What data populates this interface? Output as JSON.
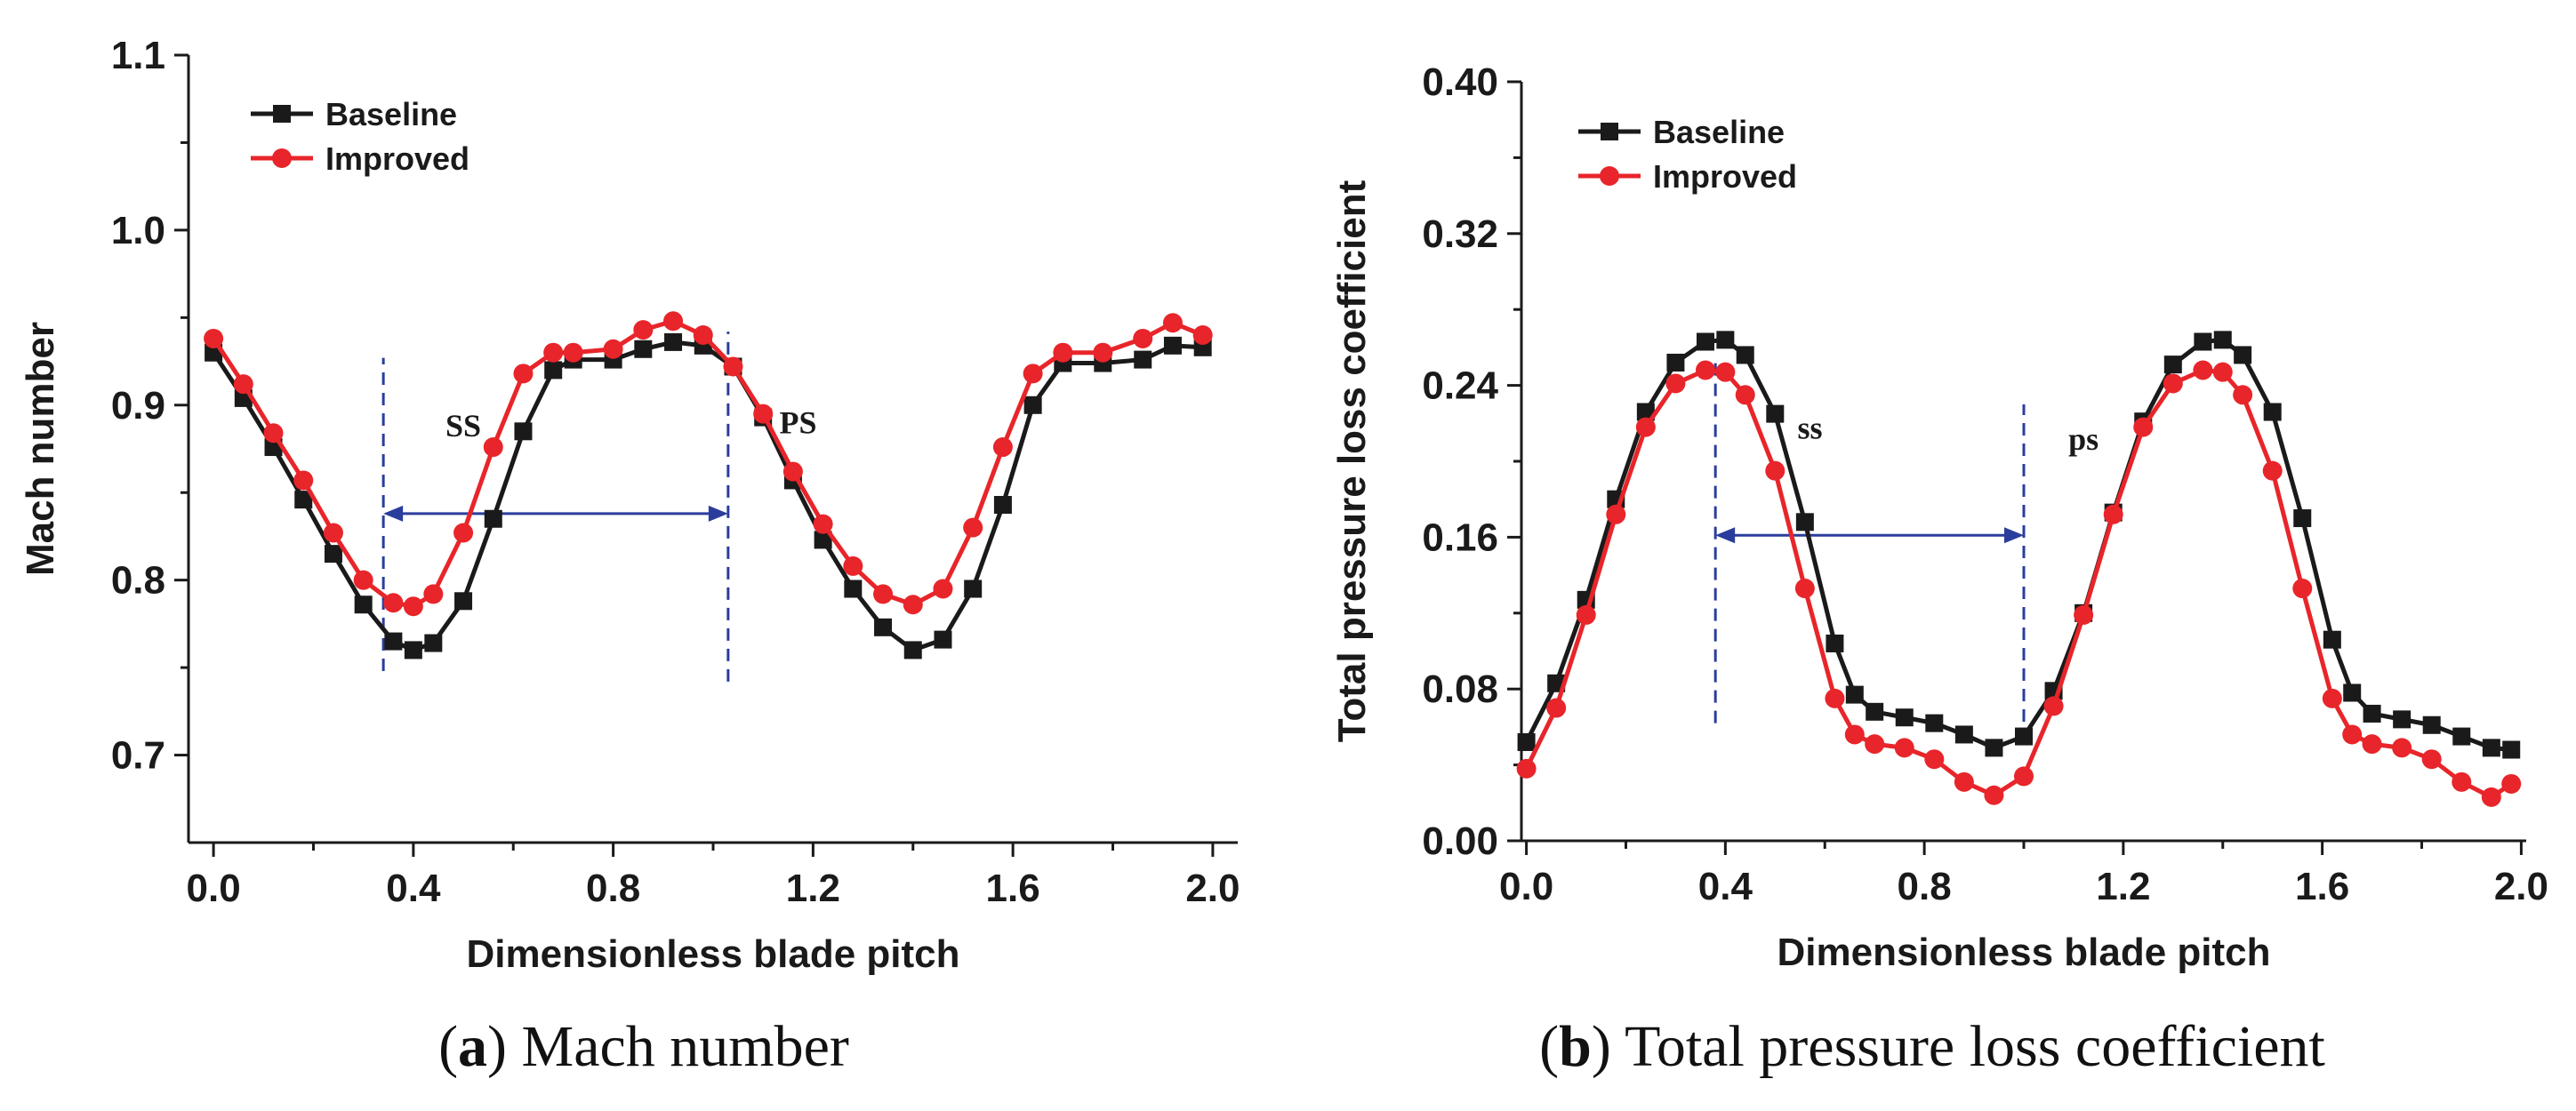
{
  "chart_data": [
    {
      "type": "line",
      "panel_letter": "a",
      "caption": "Mach number",
      "xlabel": "Dimensionless blade pitch",
      "ylabel": "Mach number",
      "xlim": [
        -0.05,
        2.05
      ],
      "ylim": [
        0.65,
        1.1
      ],
      "xticks": [
        "0.0",
        "0.4",
        "0.8",
        "1.2",
        "1.6",
        "2.0"
      ],
      "xtick_values": [
        0,
        0.4,
        0.8,
        1.2,
        1.6,
        2.0
      ],
      "yticks": [
        "0.7",
        "0.8",
        "0.9",
        "1.0",
        "1.1"
      ],
      "ytick_values": [
        0.7,
        0.8,
        0.9,
        1.0,
        1.1
      ],
      "legend_position": "top-left",
      "annotations": [
        {
          "text": "SS",
          "x": 0.5,
          "y": 0.882
        },
        {
          "text": "PS",
          "x": 1.17,
          "y": 0.884
        }
      ],
      "markers": [
        {
          "type": "dashed-vertical",
          "x": 0.34,
          "y_from": 0.748,
          "y_to": 0.927
        },
        {
          "type": "dashed-vertical",
          "x": 1.03,
          "y_from": 0.742,
          "y_to": 0.942
        },
        {
          "type": "double-arrow",
          "x_from": 0.34,
          "x_to": 1.03,
          "y": 0.838
        }
      ],
      "series": [
        {
          "name": "Baseline",
          "color": "#1a1a1a",
          "marker": "square",
          "x": [
            0.0,
            0.06,
            0.12,
            0.18,
            0.24,
            0.3,
            0.36,
            0.4,
            0.44,
            0.5,
            0.56,
            0.62,
            0.68,
            0.72,
            0.8,
            0.86,
            0.92,
            0.98,
            1.04,
            1.1,
            1.16,
            1.22,
            1.28,
            1.34,
            1.4,
            1.46,
            1.52,
            1.58,
            1.64,
            1.7,
            1.78,
            1.86,
            1.92,
            1.98
          ],
          "y": [
            0.93,
            0.904,
            0.876,
            0.846,
            0.815,
            0.786,
            0.765,
            0.76,
            0.764,
            0.788,
            0.835,
            0.885,
            0.92,
            0.926,
            0.926,
            0.932,
            0.936,
            0.934,
            0.922,
            0.893,
            0.857,
            0.823,
            0.795,
            0.773,
            0.76,
            0.766,
            0.795,
            0.843,
            0.9,
            0.924,
            0.924,
            0.926,
            0.934,
            0.933
          ]
        },
        {
          "name": "Improved",
          "color": "#e8252a",
          "marker": "circle",
          "x": [
            0.0,
            0.06,
            0.12,
            0.18,
            0.24,
            0.3,
            0.36,
            0.4,
            0.44,
            0.5,
            0.56,
            0.62,
            0.68,
            0.72,
            0.8,
            0.86,
            0.92,
            0.98,
            1.04,
            1.1,
            1.16,
            1.22,
            1.28,
            1.34,
            1.4,
            1.46,
            1.52,
            1.58,
            1.64,
            1.7,
            1.78,
            1.86,
            1.92,
            1.98
          ],
          "y": [
            0.938,
            0.912,
            0.884,
            0.857,
            0.827,
            0.8,
            0.787,
            0.785,
            0.792,
            0.827,
            0.876,
            0.918,
            0.93,
            0.93,
            0.932,
            0.943,
            0.948,
            0.94,
            0.922,
            0.895,
            0.862,
            0.832,
            0.808,
            0.792,
            0.786,
            0.795,
            0.83,
            0.876,
            0.918,
            0.93,
            0.93,
            0.938,
            0.947,
            0.94
          ]
        }
      ]
    },
    {
      "type": "line",
      "panel_letter": "b",
      "caption": "Total pressure loss coefficient",
      "xlabel": "Dimensionless blade pitch",
      "ylabel": "Total pressure loss coefficient",
      "xlim": [
        -0.01,
        2.01
      ],
      "ylim": [
        0.0,
        0.4
      ],
      "xticks": [
        "0.0",
        "0.4",
        "0.8",
        "1.2",
        "1.6",
        "2.0"
      ],
      "xtick_values": [
        0,
        0.4,
        0.8,
        1.2,
        1.6,
        2.0
      ],
      "yticks": [
        "0.00",
        "0.08",
        "0.16",
        "0.24",
        "0.32",
        "0.40"
      ],
      "ytick_values": [
        0,
        0.08,
        0.16,
        0.24,
        0.32,
        0.4
      ],
      "legend_position": "top-left",
      "annotations": [
        {
          "text": "ss",
          "x": 0.57,
          "y": 0.212
        },
        {
          "text": "ps",
          "x": 1.12,
          "y": 0.206
        }
      ],
      "markers": [
        {
          "type": "dashed-vertical",
          "x": 0.38,
          "y_from": 0.062,
          "y_to": 0.255
        },
        {
          "type": "dashed-vertical",
          "x": 1.0,
          "y_from": 0.052,
          "y_to": 0.23
        },
        {
          "type": "double-arrow",
          "x_from": 0.38,
          "x_to": 1.0,
          "y": 0.161
        }
      ],
      "series": [
        {
          "name": "Baseline",
          "color": "#1a1a1a",
          "marker": "square",
          "x": [
            0.0,
            0.06,
            0.12,
            0.18,
            0.24,
            0.3,
            0.36,
            0.4,
            0.44,
            0.5,
            0.56,
            0.62,
            0.66,
            0.7,
            0.76,
            0.82,
            0.88,
            0.94,
            1.0,
            1.06,
            1.12,
            1.18,
            1.24,
            1.3,
            1.36,
            1.4,
            1.44,
            1.5,
            1.56,
            1.62,
            1.66,
            1.7,
            1.76,
            1.82,
            1.88,
            1.94,
            1.98
          ],
          "y": [
            0.052,
            0.083,
            0.127,
            0.18,
            0.226,
            0.252,
            0.263,
            0.264,
            0.256,
            0.225,
            0.168,
            0.104,
            0.077,
            0.068,
            0.065,
            0.062,
            0.056,
            0.049,
            0.055,
            0.079,
            0.12,
            0.173,
            0.221,
            0.251,
            0.263,
            0.264,
            0.256,
            0.226,
            0.17,
            0.106,
            0.078,
            0.067,
            0.064,
            0.061,
            0.055,
            0.049,
            0.048
          ]
        },
        {
          "name": "Improved",
          "color": "#e8252a",
          "marker": "circle",
          "x": [
            0.0,
            0.06,
            0.12,
            0.18,
            0.24,
            0.3,
            0.36,
            0.4,
            0.44,
            0.5,
            0.56,
            0.62,
            0.66,
            0.7,
            0.76,
            0.82,
            0.88,
            0.94,
            1.0,
            1.06,
            1.12,
            1.18,
            1.24,
            1.3,
            1.36,
            1.4,
            1.44,
            1.5,
            1.56,
            1.62,
            1.66,
            1.7,
            1.76,
            1.82,
            1.88,
            1.94,
            1.98
          ],
          "y": [
            0.038,
            0.07,
            0.119,
            0.172,
            0.218,
            0.241,
            0.248,
            0.247,
            0.235,
            0.195,
            0.133,
            0.075,
            0.056,
            0.051,
            0.049,
            0.043,
            0.031,
            0.024,
            0.034,
            0.071,
            0.119,
            0.172,
            0.218,
            0.241,
            0.248,
            0.247,
            0.235,
            0.195,
            0.133,
            0.075,
            0.056,
            0.051,
            0.049,
            0.043,
            0.031,
            0.023,
            0.03
          ]
        }
      ]
    }
  ]
}
